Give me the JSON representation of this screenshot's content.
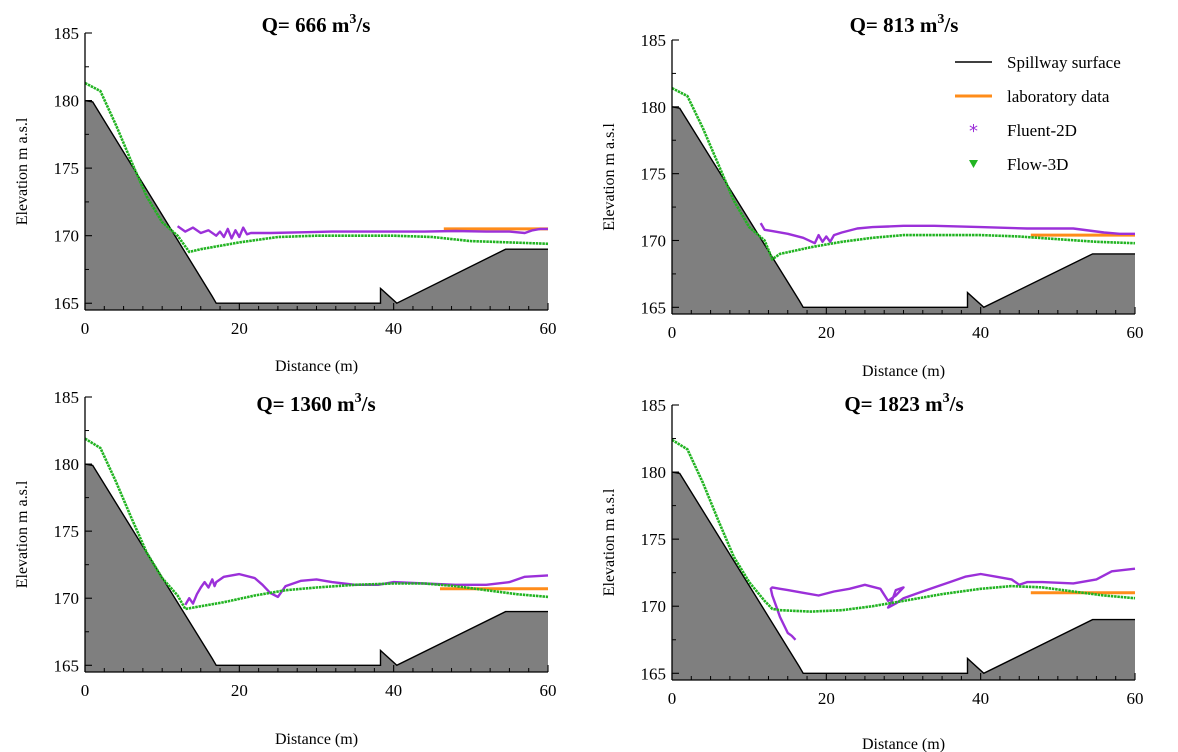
{
  "legend": {
    "entries": [
      {
        "name": "Spillway surface",
        "color": "#000000",
        "symbol": "line"
      },
      {
        "name": "laboratory data",
        "color": "#ff8c1a",
        "symbol": "line"
      },
      {
        "name": "Fluent-2D",
        "color": "#9b30d9",
        "symbol": "star"
      },
      {
        "name": "Flow-3D",
        "color": "#22b422",
        "symbol": "triangle-down"
      }
    ]
  },
  "chart_data": [
    {
      "type": "line",
      "title_prefix": "Q= ",
      "discharge": "666",
      "unit_base": "m",
      "unit_exp": "3",
      "unit_suffix": "/s",
      "xlabel": "Distance  (m)",
      "ylabel": "Elevation m a.s.l",
      "xlim": [
        0,
        60
      ],
      "ylim": [
        164.5,
        185
      ],
      "xticks": [
        "0",
        "20",
        "40",
        "60"
      ],
      "yticks": [
        "165",
        "170",
        "175",
        "180",
        "185"
      ],
      "spillway": [
        [
          0,
          180
        ],
        [
          1,
          179.9
        ],
        [
          16.5,
          165.5
        ],
        [
          17,
          165
        ],
        [
          38.3,
          165
        ],
        [
          38.3,
          166.1
        ],
        [
          40.4,
          165
        ],
        [
          54.5,
          169
        ],
        [
          60,
          169
        ]
      ],
      "series": [
        {
          "name": "laboratory data",
          "x": [
            46.5,
            60
          ],
          "y": [
            170.5,
            170.5
          ]
        },
        {
          "name": "Fluent-2D",
          "x": [
            12,
            13,
            14,
            15,
            16,
            17,
            17.5,
            18,
            18.5,
            19,
            19.5,
            20,
            20.5,
            21,
            21.5,
            22,
            24,
            28,
            32,
            36,
            40,
            44,
            48,
            52,
            55,
            57,
            58,
            59,
            60
          ],
          "y": [
            170.7,
            170.3,
            170.6,
            170.2,
            170.4,
            170.0,
            170.3,
            169.9,
            170.5,
            169.8,
            170.4,
            169.9,
            170.6,
            170.1,
            170.2,
            170.2,
            170.2,
            170.25,
            170.3,
            170.3,
            170.3,
            170.3,
            170.35,
            170.3,
            170.3,
            170.2,
            170.4,
            170.5,
            170.5
          ]
        },
        {
          "name": "Flow-3D",
          "x": [
            0,
            2,
            4,
            6,
            8,
            10,
            12,
            13.5,
            15,
            20,
            25,
            30,
            35,
            40,
            45,
            50,
            55,
            60
          ],
          "y": [
            181.3,
            180.7,
            178.2,
            175.5,
            172.9,
            171.0,
            170.0,
            168.8,
            169.0,
            169.5,
            169.9,
            170.0,
            170.0,
            170.0,
            169.9,
            169.6,
            169.5,
            169.4
          ]
        }
      ]
    },
    {
      "type": "line",
      "title_prefix": "Q= ",
      "discharge": "813",
      "unit_base": "m",
      "unit_exp": "3",
      "unit_suffix": "/s",
      "xlabel": "Distance  (m)",
      "ylabel": "Elevation m a.s.l",
      "xlim": [
        0,
        60
      ],
      "ylim": [
        164.5,
        185
      ],
      "xticks": [
        "0",
        "20",
        "40",
        "60"
      ],
      "yticks": [
        "165",
        "170",
        "175",
        "180",
        "185"
      ],
      "spillway": [
        [
          0,
          180
        ],
        [
          1,
          179.9
        ],
        [
          16.5,
          165.5
        ],
        [
          17,
          165
        ],
        [
          38.3,
          165
        ],
        [
          38.3,
          166.1
        ],
        [
          40.4,
          165
        ],
        [
          54.5,
          169
        ],
        [
          60,
          169
        ]
      ],
      "series": [
        {
          "name": "laboratory data",
          "x": [
            46.5,
            60
          ],
          "y": [
            170.4,
            170.4
          ]
        },
        {
          "name": "Fluent-2D",
          "x": [
            11.5,
            12,
            13,
            15,
            17,
            18.5,
            19,
            19.5,
            20,
            20.5,
            21,
            22,
            24,
            26,
            28,
            30,
            34,
            40,
            46,
            52,
            56,
            58,
            60
          ],
          "y": [
            171.3,
            170.8,
            170.7,
            170.5,
            170.2,
            169.8,
            170.4,
            169.9,
            170.3,
            169.9,
            170.4,
            170.6,
            170.9,
            171.0,
            171.05,
            171.1,
            171.1,
            171.0,
            170.9,
            170.9,
            170.6,
            170.5,
            170.5
          ]
        },
        {
          "name": "Flow-3D",
          "x": [
            0,
            2,
            4,
            6,
            8,
            10,
            12,
            13,
            14,
            18,
            22,
            26,
            30,
            35,
            40,
            45,
            50,
            55,
            60
          ],
          "y": [
            181.4,
            180.8,
            178.4,
            175.7,
            173.0,
            171.0,
            170.0,
            168.6,
            169.0,
            169.5,
            169.9,
            170.2,
            170.4,
            170.4,
            170.4,
            170.3,
            170.1,
            169.9,
            169.8
          ]
        }
      ]
    },
    {
      "type": "line",
      "title_prefix": "Q= ",
      "discharge": "1360",
      "unit_base": "m",
      "unit_exp": "3",
      "unit_suffix": "/s",
      "xlabel": "Distance  (m)",
      "ylabel": "Elevation m a.s.l",
      "xlim": [
        0,
        60
      ],
      "ylim": [
        164.5,
        185
      ],
      "xticks": [
        "0",
        "20",
        "40",
        "60"
      ],
      "yticks": [
        "165",
        "170",
        "175",
        "180",
        "185"
      ],
      "spillway": [
        [
          0,
          180
        ],
        [
          1,
          179.9
        ],
        [
          16.5,
          165.5
        ],
        [
          17,
          165
        ],
        [
          38.3,
          165
        ],
        [
          38.3,
          166.1
        ],
        [
          40.4,
          165
        ],
        [
          54.5,
          169
        ],
        [
          60,
          169
        ]
      ],
      "series": [
        {
          "name": "laboratory data",
          "x": [
            46,
            60
          ],
          "y": [
            170.7,
            170.7
          ]
        },
        {
          "name": "Fluent-2D",
          "x": [
            13,
            13.5,
            14,
            14.5,
            15,
            15.5,
            16,
            16.5,
            16.8,
            17,
            18,
            20,
            22,
            23,
            24,
            25,
            26,
            28,
            30,
            32,
            35,
            38,
            40,
            44,
            48,
            52,
            55,
            57,
            60
          ],
          "y": [
            169.5,
            170.0,
            169.6,
            170.3,
            170.8,
            171.2,
            170.8,
            171.4,
            170.9,
            171.2,
            171.6,
            171.8,
            171.5,
            171.0,
            170.4,
            170.1,
            170.9,
            171.3,
            171.4,
            171.2,
            171.0,
            171.0,
            171.2,
            171.1,
            171.0,
            171.0,
            171.2,
            171.6,
            171.7
          ]
        },
        {
          "name": "Flow-3D",
          "x": [
            0,
            2,
            4,
            6,
            8,
            10,
            12,
            13,
            14,
            18,
            22,
            26,
            30,
            35,
            40,
            44,
            48,
            52,
            56,
            60
          ],
          "y": [
            181.9,
            181.2,
            178.7,
            176.0,
            173.4,
            171.5,
            170.2,
            169.2,
            169.3,
            169.7,
            170.2,
            170.6,
            170.8,
            171.0,
            171.1,
            171.1,
            170.9,
            170.6,
            170.3,
            170.1
          ]
        }
      ]
    },
    {
      "type": "line",
      "title_prefix": "Q= ",
      "discharge": "1823",
      "unit_base": "m",
      "unit_exp": "3",
      "unit_suffix": "/s",
      "xlabel": "Distance  (m)",
      "ylabel": "Elevation m a.s.l",
      "xlim": [
        0,
        60
      ],
      "ylim": [
        164.5,
        185
      ],
      "xticks": [
        "0",
        "20",
        "40",
        "60"
      ],
      "yticks": [
        "165",
        "170",
        "175",
        "180",
        "185"
      ],
      "spillway": [
        [
          0,
          180
        ],
        [
          1,
          179.9
        ],
        [
          16.5,
          165.5
        ],
        [
          17,
          165
        ],
        [
          38.3,
          165
        ],
        [
          38.3,
          166.1
        ],
        [
          40.4,
          165
        ],
        [
          54.5,
          169
        ],
        [
          60,
          169
        ]
      ],
      "series": [
        {
          "name": "laboratory data",
          "x": [
            46.5,
            60
          ],
          "y": [
            171.0,
            171.0
          ]
        },
        {
          "name": "Fluent-2D",
          "x": [
            16,
            15.5,
            15,
            14.5,
            14,
            13.5,
            13,
            12.8,
            13,
            14,
            15,
            17,
            19,
            21,
            23,
            25,
            27,
            28,
            29,
            30,
            29,
            28.5,
            28,
            29,
            30,
            32,
            34,
            36,
            38,
            40,
            42,
            44,
            45,
            46,
            48,
            52,
            55,
            57,
            60
          ],
          "y": [
            167.5,
            167.8,
            168.0,
            168.6,
            169.2,
            170.0,
            170.8,
            171.3,
            171.4,
            171.3,
            171.2,
            171.0,
            170.8,
            171.1,
            171.3,
            171.6,
            171.3,
            170.4,
            170.8,
            171.4,
            171.2,
            170.4,
            169.9,
            170.2,
            170.6,
            171.0,
            171.4,
            171.8,
            172.2,
            172.4,
            172.2,
            172.0,
            171.6,
            171.8,
            171.8,
            171.7,
            172.0,
            172.6,
            172.8
          ]
        },
        {
          "name": "Flow-3D",
          "x": [
            0,
            2,
            4,
            6,
            8,
            10,
            12,
            13,
            14,
            18,
            22,
            26,
            30,
            35,
            40,
            44,
            48,
            52,
            56,
            60
          ],
          "y": [
            182.4,
            181.7,
            179.2,
            176.4,
            173.7,
            171.8,
            170.4,
            169.8,
            169.7,
            169.6,
            169.7,
            170.0,
            170.4,
            170.9,
            171.3,
            171.5,
            171.4,
            171.1,
            170.8,
            170.6
          ]
        }
      ]
    }
  ]
}
